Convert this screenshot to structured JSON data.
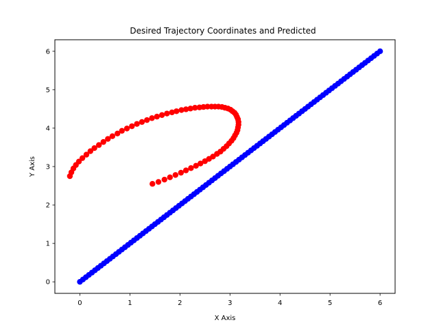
{
  "chart_data": {
    "type": "scatter",
    "title": "Desired Trajectory Coordinates and  Predicted",
    "xlabel": "X Axis",
    "ylabel": "Y Axis",
    "xlim": [
      -0.5,
      6.3
    ],
    "ylim": [
      -0.3,
      6.3
    ],
    "xticks": [
      0,
      1,
      2,
      3,
      4,
      5,
      6
    ],
    "yticks": [
      0,
      1,
      2,
      3,
      4,
      5,
      6
    ],
    "grid": false,
    "legend": "none",
    "series": [
      {
        "color": "#0000ff",
        "x": [
          0.0,
          0.06,
          0.12,
          0.18,
          0.24,
          0.3,
          0.36,
          0.42,
          0.48,
          0.54,
          0.6,
          0.66,
          0.72,
          0.78,
          0.84,
          0.9,
          0.96,
          1.02,
          1.08,
          1.14,
          1.2,
          1.26,
          1.32,
          1.38,
          1.44,
          1.5,
          1.56,
          1.62,
          1.68,
          1.74,
          1.8,
          1.86,
          1.92,
          1.98,
          2.04,
          2.1,
          2.16,
          2.22,
          2.28,
          2.34,
          2.4,
          2.46,
          2.52,
          2.58,
          2.64,
          2.7,
          2.76,
          2.82,
          2.88,
          2.94,
          3.0,
          3.06,
          3.12,
          3.18,
          3.24,
          3.3,
          3.36,
          3.42,
          3.48,
          3.54,
          3.6,
          3.66,
          3.72,
          3.78,
          3.84,
          3.9,
          3.96,
          4.02,
          4.08,
          4.14,
          4.2,
          4.26,
          4.32,
          4.38,
          4.44,
          4.5,
          4.56,
          4.62,
          4.68,
          4.74,
          4.8,
          4.86,
          4.92,
          4.98,
          5.04,
          5.1,
          5.16,
          5.22,
          5.28,
          5.34,
          5.4,
          5.46,
          5.52,
          5.58,
          5.64,
          5.7,
          5.76,
          5.82,
          5.88,
          5.94,
          6.0
        ],
        "y": [
          0.0,
          0.06,
          0.12,
          0.18,
          0.24,
          0.3,
          0.36,
          0.42,
          0.48,
          0.54,
          0.6,
          0.66,
          0.72,
          0.78,
          0.84,
          0.9,
          0.96,
          1.02,
          1.08,
          1.14,
          1.2,
          1.26,
          1.32,
          1.38,
          1.44,
          1.5,
          1.56,
          1.62,
          1.68,
          1.74,
          1.8,
          1.86,
          1.92,
          1.98,
          2.04,
          2.1,
          2.16,
          2.22,
          2.28,
          2.34,
          2.4,
          2.46,
          2.52,
          2.58,
          2.64,
          2.7,
          2.76,
          2.82,
          2.88,
          2.94,
          3.0,
          3.06,
          3.12,
          3.18,
          3.24,
          3.3,
          3.36,
          3.42,
          3.48,
          3.54,
          3.6,
          3.66,
          3.72,
          3.78,
          3.84,
          3.9,
          3.96,
          4.02,
          4.08,
          4.14,
          4.2,
          4.26,
          4.32,
          4.38,
          4.44,
          4.5,
          4.56,
          4.62,
          4.68,
          4.74,
          4.8,
          4.86,
          4.92,
          4.98,
          5.04,
          5.1,
          5.16,
          5.22,
          5.28,
          5.34,
          5.4,
          5.46,
          5.52,
          5.58,
          5.64,
          5.7,
          5.76,
          5.82,
          5.88,
          5.94,
          6.0
        ]
      },
      {
        "color": "#ff0000",
        "x": [
          1.45,
          1.57,
          1.69,
          1.8,
          1.91,
          2.02,
          2.12,
          2.22,
          2.32,
          2.41,
          2.5,
          2.58,
          2.66,
          2.74,
          2.81,
          2.87,
          2.93,
          2.98,
          3.03,
          3.07,
          3.1,
          3.13,
          3.15,
          3.16,
          3.17,
          3.17,
          3.16,
          3.14,
          3.12,
          3.09,
          3.05,
          3.01,
          2.96,
          2.9,
          2.84,
          2.77,
          2.7,
          2.63,
          2.55,
          2.47,
          2.39,
          2.3,
          2.21,
          2.12,
          2.03,
          1.93,
          1.84,
          1.74,
          1.64,
          1.54,
          1.44,
          1.34,
          1.24,
          1.14,
          1.04,
          0.94,
          0.84,
          0.75,
          0.65,
          0.56,
          0.47,
          0.38,
          0.29,
          0.21,
          0.13,
          0.05,
          -0.02,
          -0.08,
          -0.13,
          -0.17,
          -0.2
        ],
        "y": [
          2.55,
          2.6,
          2.66,
          2.72,
          2.78,
          2.84,
          2.9,
          2.96,
          3.02,
          3.08,
          3.14,
          3.2,
          3.26,
          3.33,
          3.39,
          3.46,
          3.53,
          3.6,
          3.67,
          3.74,
          3.81,
          3.88,
          3.95,
          4.02,
          4.09,
          4.16,
          4.23,
          4.29,
          4.35,
          4.4,
          4.44,
          4.48,
          4.51,
          4.53,
          4.55,
          4.56,
          4.56,
          4.56,
          4.56,
          4.55,
          4.54,
          4.53,
          4.51,
          4.49,
          4.47,
          4.44,
          4.41,
          4.38,
          4.34,
          4.3,
          4.26,
          4.21,
          4.16,
          4.11,
          4.05,
          3.99,
          3.93,
          3.86,
          3.79,
          3.72,
          3.64,
          3.56,
          3.48,
          3.4,
          3.31,
          3.22,
          3.13,
          3.04,
          2.95,
          2.85,
          2.75
        ]
      }
    ]
  }
}
